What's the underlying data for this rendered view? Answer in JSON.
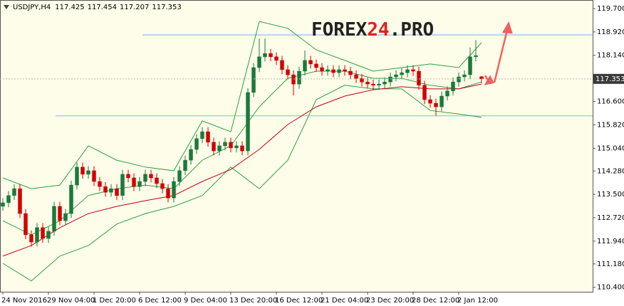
{
  "chart_data": {
    "type": "candlestick",
    "symbol": "USDJPY,H4",
    "watermark": [
      "FOREX",
      "24",
      ".PRO"
    ],
    "up_color": "#1b7a3b",
    "down_color": "#d40000",
    "ylim": [
      110.25,
      119.985
    ],
    "yticks": [
      {
        "value": 119.7,
        "label": "119.700"
      },
      {
        "value": 118.92,
        "label": "118.920"
      },
      {
        "value": 118.14,
        "label": "118.140"
      },
      {
        "value": 116.6,
        "label": "116.600"
      },
      {
        "value": 115.82,
        "label": "115.820"
      },
      {
        "value": 115.04,
        "label": "115.040"
      },
      {
        "value": 114.28,
        "label": "114.280"
      },
      {
        "value": 113.5,
        "label": "113.500"
      },
      {
        "value": 112.72,
        "label": "112.720"
      },
      {
        "value": 111.94,
        "label": "111.940"
      },
      {
        "value": 111.18,
        "label": "111.180"
      },
      {
        "value": 110.4,
        "label": "110.400"
      }
    ],
    "xticks": [
      {
        "value": 0,
        "label": "24 Nov 2016"
      },
      {
        "value": 8,
        "label": "29 Nov 04:00"
      },
      {
        "value": 16,
        "label": "1 Dec 20:00"
      },
      {
        "value": 24,
        "label": "6 Dec 12:00"
      },
      {
        "value": 32,
        "label": "9 Dec 04:00"
      },
      {
        "value": 40,
        "label": "13 Dec 20:00"
      },
      {
        "value": 48,
        "label": "16 Dec 12:00"
      },
      {
        "value": 56,
        "label": "21 Dec 04:00"
      },
      {
        "value": 64,
        "label": "23 Dec 20:00"
      },
      {
        "value": 72,
        "label": "28 Dec 12:00"
      },
      {
        "value": 80,
        "label": "2 Jan 12:00"
      }
    ],
    "open": [
      113.1,
      113.22,
      113.46,
      113.69,
      112.86,
      112.15,
      111.91,
      112.39,
      112.03,
      112.27,
      113.1,
      112.62,
      112.86,
      113.81,
      114.41,
      114.17,
      114.29,
      113.93,
      113.76,
      113.57,
      113.69,
      113.46,
      114.17,
      114.05,
      113.76,
      113.93,
      114.17,
      114.05,
      113.86,
      113.69,
      113.38,
      113.93,
      114.29,
      114.64,
      115.0,
      115.36,
      115.59,
      115.24,
      114.95,
      115.12,
      115.24,
      115.05,
      115.12,
      114.95,
      116.9,
      117.73,
      118.09,
      118.2,
      118.09,
      117.97,
      117.66,
      117.49,
      117.18,
      117.61,
      117.97,
      117.85,
      117.73,
      117.61,
      117.66,
      117.56,
      117.66,
      117.61,
      117.49,
      117.37,
      117.25,
      117.18,
      117.14,
      117.18,
      117.25,
      117.42,
      117.49,
      117.56,
      117.66,
      117.61,
      117.14,
      116.66,
      116.54,
      116.42,
      116.78,
      116.95,
      117.25,
      117.42,
      117.49,
      118.09,
      117.425
    ],
    "high": [
      113.37,
      113.61,
      113.84,
      113.84,
      113.01,
      112.3,
      112.54,
      112.54,
      112.42,
      113.25,
      113.25,
      113.01,
      113.96,
      114.56,
      114.56,
      114.44,
      114.44,
      114.08,
      113.91,
      113.84,
      113.84,
      114.32,
      114.32,
      114.2,
      114.08,
      114.32,
      114.32,
      114.2,
      114.01,
      113.84,
      114.08,
      114.44,
      114.79,
      115.15,
      115.51,
      115.74,
      115.74,
      115.39,
      115.27,
      115.39,
      115.39,
      115.27,
      115.27,
      117.05,
      117.88,
      118.7,
      118.7,
      118.35,
      118.24,
      118.12,
      117.81,
      117.64,
      117.76,
      118.3,
      118.12,
      118.0,
      117.88,
      117.81,
      117.81,
      117.81,
      117.81,
      117.76,
      117.64,
      117.52,
      117.4,
      117.33,
      117.33,
      117.4,
      117.57,
      117.64,
      117.71,
      117.81,
      117.81,
      117.76,
      117.29,
      116.81,
      116.69,
      116.93,
      117.1,
      117.4,
      117.57,
      117.64,
      118.4,
      118.65,
      117.454
    ],
    "low": [
      112.95,
      113.07,
      113.31,
      112.71,
      112.0,
      111.76,
      111.76,
      111.88,
      111.88,
      112.12,
      112.47,
      112.47,
      112.71,
      113.66,
      114.02,
      114.02,
      113.78,
      113.61,
      113.42,
      113.42,
      113.31,
      113.31,
      113.9,
      113.61,
      113.61,
      113.78,
      113.9,
      113.71,
      113.54,
      113.23,
      113.23,
      113.78,
      114.14,
      114.49,
      114.85,
      115.21,
      115.09,
      114.8,
      114.8,
      114.97,
      114.9,
      114.9,
      114.8,
      114.8,
      116.75,
      117.58,
      117.94,
      117.94,
      117.82,
      117.51,
      117.34,
      116.8,
      117.03,
      117.46,
      117.7,
      117.58,
      117.46,
      117.46,
      117.41,
      117.41,
      117.46,
      117.34,
      117.22,
      117.1,
      117.03,
      116.99,
      116.99,
      117.03,
      117.1,
      117.27,
      117.34,
      117.41,
      117.46,
      116.99,
      116.51,
      116.39,
      116.12,
      116.27,
      116.63,
      116.8,
      117.1,
      117.27,
      117.34,
      117.94,
      117.207
    ],
    "close": [
      113.22,
      113.46,
      113.69,
      112.86,
      112.15,
      111.91,
      112.39,
      112.03,
      112.27,
      113.1,
      112.62,
      112.86,
      113.81,
      114.41,
      114.17,
      114.29,
      113.93,
      113.76,
      113.57,
      113.69,
      113.46,
      114.17,
      114.05,
      113.76,
      113.93,
      114.17,
      114.05,
      113.86,
      113.69,
      113.38,
      113.93,
      114.29,
      114.64,
      115.0,
      115.36,
      115.59,
      115.24,
      114.95,
      115.12,
      115.24,
      115.05,
      115.12,
      114.95,
      116.9,
      117.73,
      118.09,
      118.2,
      118.09,
      117.97,
      117.66,
      117.49,
      117.18,
      117.61,
      117.97,
      117.85,
      117.73,
      117.61,
      117.66,
      117.56,
      117.66,
      117.61,
      117.49,
      117.37,
      117.25,
      117.18,
      117.14,
      117.18,
      117.25,
      117.42,
      117.49,
      117.56,
      117.66,
      117.61,
      117.14,
      116.66,
      116.54,
      116.42,
      116.78,
      116.95,
      117.25,
      117.42,
      117.49,
      118.09,
      118.13,
      117.353
    ],
    "lines": [
      {
        "color": "#2f9e44",
        "x": [
          0,
          5,
          10,
          15,
          20,
          25,
          30,
          35,
          40,
          45,
          50,
          55,
          60,
          65,
          70,
          75,
          80,
          84
        ],
        "values": [
          114.05,
          113.69,
          113.81,
          115.12,
          114.64,
          114.41,
          114.29,
          115.95,
          115.59,
          119.27,
          119.04,
          118.32,
          117.97,
          117.61,
          117.73,
          117.85,
          117.73,
          118.56
        ]
      },
      {
        "color": "#2f9e44",
        "x": [
          0,
          5,
          10,
          15,
          20,
          25,
          30,
          35,
          40,
          45,
          50,
          55,
          60,
          65,
          70,
          75,
          80,
          84
        ],
        "values": [
          112.62,
          112.15,
          112.62,
          113.46,
          113.69,
          113.81,
          113.69,
          114.64,
          115.12,
          116.42,
          117.37,
          117.61,
          117.61,
          117.37,
          117.37,
          117.14,
          117.02,
          117.25
        ]
      },
      {
        "color": "#2f9e44",
        "x": [
          0,
          5,
          10,
          15,
          20,
          25,
          30,
          35,
          40,
          45,
          50,
          55,
          60,
          65,
          70,
          75,
          80,
          84
        ],
        "values": [
          111.2,
          110.61,
          111.44,
          111.79,
          112.51,
          112.86,
          113.1,
          113.46,
          114.41,
          113.69,
          114.64,
          116.66,
          117.14,
          117.02,
          117.02,
          116.3,
          116.18,
          116.07
        ]
      },
      {
        "color": "#c0001a",
        "x": [
          0,
          5,
          10,
          15,
          20,
          25,
          30,
          35,
          40,
          45,
          50,
          55,
          60,
          65,
          70,
          75,
          80,
          84
        ],
        "values": [
          111.44,
          111.79,
          112.39,
          112.86,
          113.1,
          113.29,
          113.46,
          113.93,
          114.33,
          115.0,
          115.83,
          116.42,
          116.78,
          116.99,
          117.09,
          117.02,
          117.02,
          117.18
        ]
      }
    ],
    "hlines": [
      118.82,
      116.12
    ],
    "hline_color": "#9cc3ee",
    "grid": false
  }
}
